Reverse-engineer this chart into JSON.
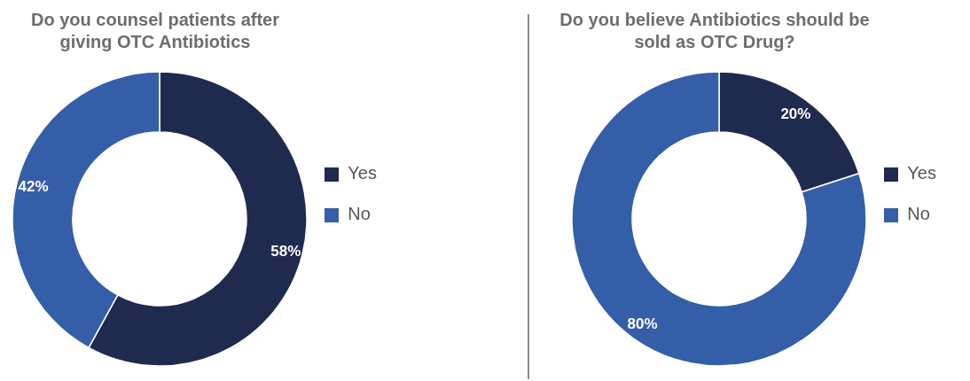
{
  "chart_data": [
    {
      "type": "donut",
      "title": "Do you counsel patients after giving OTC Antibiotics",
      "categories": [
        "Yes",
        "No"
      ],
      "values": [
        58,
        42
      ],
      "value_labels": [
        "58%",
        "42%"
      ],
      "colors": [
        "#1f2a4f",
        "#345ea8"
      ],
      "legend": "right"
    },
    {
      "type": "donut",
      "title": "Do you believe Antibiotics should be sold as OTC Drug?",
      "categories": [
        "Yes",
        "No"
      ],
      "values": [
        20,
        80
      ],
      "value_labels": [
        "20%",
        "80%"
      ],
      "colors": [
        "#1f2a4f",
        "#345ea8"
      ],
      "legend": "right"
    }
  ]
}
